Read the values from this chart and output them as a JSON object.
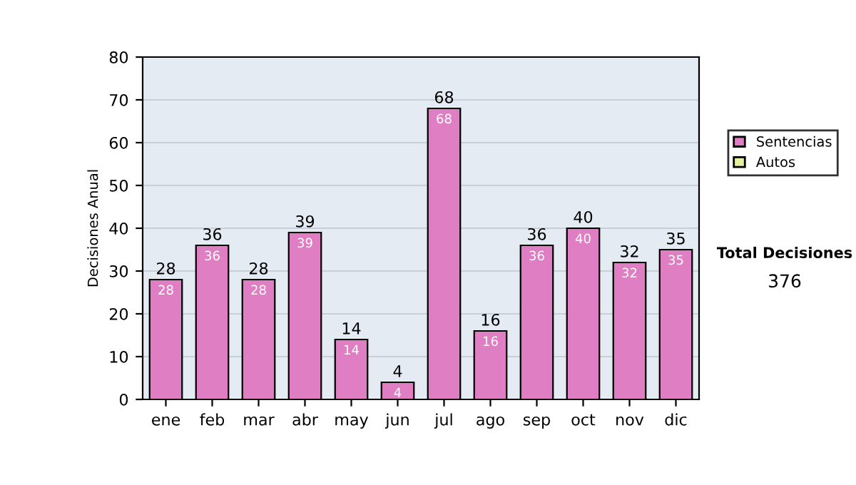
{
  "chart_data": {
    "type": "bar",
    "stacked": true,
    "ylabel": "Decisiones Anual",
    "categories": [
      "ene",
      "feb",
      "mar",
      "abr",
      "may",
      "jun",
      "jul",
      "ago",
      "sep",
      "oct",
      "nov",
      "dic"
    ],
    "series": [
      {
        "name": "Sentencias",
        "color": "#e07ec4",
        "values": [
          28,
          36,
          28,
          39,
          14,
          4,
          68,
          16,
          36,
          40,
          32,
          35
        ],
        "value_labels": [
          "28",
          "36",
          "28",
          "39",
          "14",
          "4",
          "68",
          "16",
          "36",
          "40",
          "32",
          "35"
        ]
      },
      {
        "name": "Autos",
        "color": "#e6f0a0",
        "values": [
          null,
          null,
          null,
          null,
          null,
          null,
          null,
          null,
          null,
          null,
          null,
          null
        ]
      }
    ],
    "totals": [
      "28",
      "36",
      "28",
      "39",
      "14",
      "4",
      "68",
      "16",
      "36",
      "40",
      "32",
      "35"
    ],
    "ylim": [
      0,
      80
    ],
    "yticks": [
      0,
      10,
      20,
      30,
      40,
      50,
      60,
      70,
      80
    ],
    "grid": "y",
    "legend": "right",
    "annotations": [
      "Total Decisiones",
      "376"
    ]
  }
}
